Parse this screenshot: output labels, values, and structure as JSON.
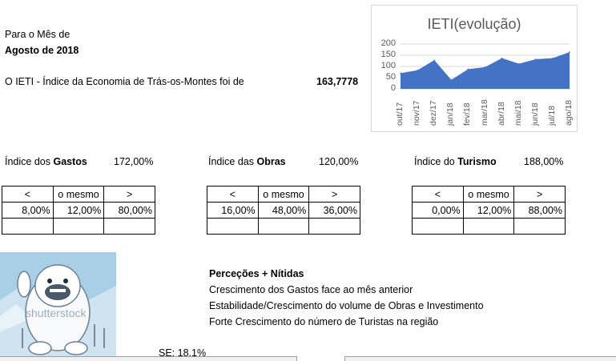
{
  "header": {
    "line1": "Para o Mês de",
    "month": "Agosto de 2018",
    "ieti_text": "O IETI - Índice da Economia de Trás-os-Montes foi de",
    "ieti_value": "163,7778"
  },
  "indices": {
    "gastos": {
      "prefix": "Índice dos ",
      "bold": "Gastos",
      "value": "172,00%"
    },
    "obras": {
      "prefix": "Índice das ",
      "bold": "Obras",
      "value": "120,00%"
    },
    "turismo": {
      "prefix": "Índice do ",
      "bold": "Turismo",
      "value": "188,00%"
    }
  },
  "tables": {
    "headers": [
      "<",
      "o mesmo",
      ">"
    ],
    "gastos": [
      "8,00%",
      "12,00%",
      "80,00%"
    ],
    "obras": [
      "16,00%",
      "48,00%",
      "36,00%"
    ],
    "turismo": [
      "0,00%",
      "12,00%",
      "88,00%"
    ]
  },
  "perceptions": {
    "title": "Perceções + Nítidas",
    "items": [
      "Crescimento dos Gastos face ao mês anterior",
      "Estabilidade/Crescimento do volume de Obras e Investimento",
      "Forte Crescimento do número de Turistas na região"
    ]
  },
  "image": {
    "watermark": "shutterstock"
  },
  "se_label": "SE: 18,1%",
  "chart_data": {
    "type": "area",
    "title": "IETI(evolução)",
    "categories": [
      "out/17",
      "nov/17",
      "dez/17",
      "jan/18",
      "fev/18",
      "mar/18",
      "abr/18",
      "mai/18",
      "jun/18",
      "jul/18",
      "ago/18"
    ],
    "values": [
      70,
      83,
      128,
      40,
      88,
      97,
      137,
      112,
      132,
      137,
      164
    ],
    "ylim": [
      0,
      200
    ],
    "yticks": [
      "0",
      "50",
      "100",
      "150",
      "200"
    ],
    "color": "#4472c4",
    "grid": true
  }
}
